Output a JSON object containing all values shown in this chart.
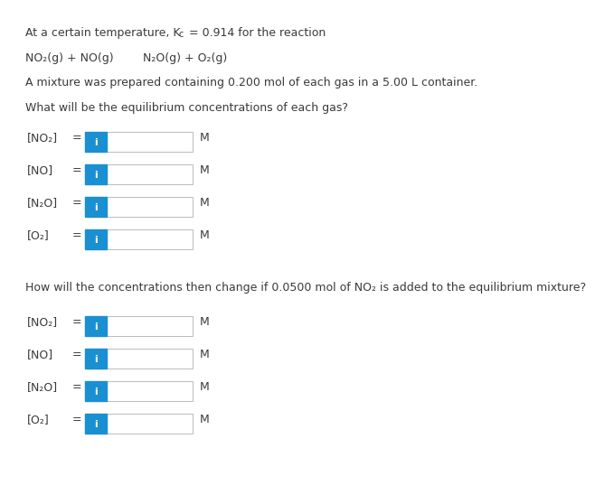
{
  "title_part1": "At a certain temperature, K",
  "title_sub": "c",
  "title_part2": " = 0.914 for the reaction",
  "reaction_left": "NO₂(g) + NO(g)",
  "reaction_right": "N₂O(g) + O₂(g)",
  "mixture_text": "A mixture was prepared containing 0.200 mol of each gas in a 5.00 L container.",
  "question1": "What will be the equilibrium concentrations of each gas?",
  "labels1": [
    "[NO₂]",
    "[NO]",
    "[N₂O]",
    "[O₂]"
  ],
  "question2": "How will the concentrations then change if 0.0500 mol of NO₂ is added to the equilibrium mixture?",
  "labels2": [
    "[NO₂]",
    "[NO]",
    "[N₂O]",
    "[O₂]"
  ],
  "unit": "M",
  "button_color": "#1a8fd1",
  "button_text": "i",
  "button_text_color": "#ffffff",
  "bg_color": "#ffffff",
  "text_color": "#3a3a3a",
  "box_border_color": "#bbbbbb",
  "font_size": 9.0
}
